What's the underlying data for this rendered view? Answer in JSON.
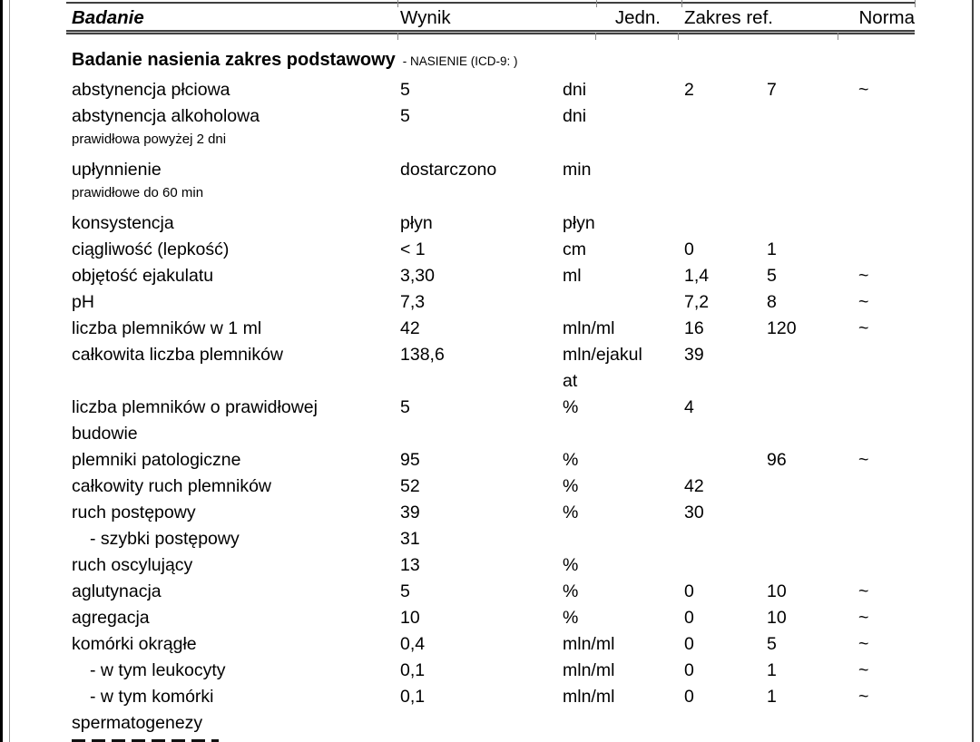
{
  "page": {
    "header": {
      "col_badanie": "Badanie",
      "col_wynik": "Wynik",
      "col_jedn": "Jedn.",
      "col_zakres": "Zakres ref.",
      "col_norma": "Norma"
    },
    "section": {
      "title": "Badanie nasienia zakres podstawowy",
      "suffix": "- NASIENIE (ICD-9: )"
    },
    "table": {
      "rows": [
        {
          "label": [
            "abstynencja płciowa"
          ],
          "result": "5",
          "unit": [
            "dni"
          ],
          "ref_low": "2",
          "ref_high": "7",
          "norma": "~"
        },
        {
          "label": [
            "abstynencja alkoholowa"
          ],
          "result": "5",
          "unit": [
            "dni"
          ],
          "note": "prawidłowa powyżej 2 dni"
        },
        {
          "label": [
            "upłynnienie"
          ],
          "result": "dostarczono",
          "unit": [
            "min"
          ],
          "note": "prawidłowe do 60 min"
        },
        {
          "label": [
            "konsystencja"
          ],
          "result": "płyn",
          "unit": [
            "płyn"
          ]
        },
        {
          "label": [
            "ciągliwość (lepkość)"
          ],
          "result": "< 1",
          "unit": [
            "cm"
          ],
          "ref_low": "0",
          "ref_high": "1"
        },
        {
          "label": [
            "objętość ejakulatu"
          ],
          "result": "3,30",
          "unit": [
            "ml"
          ],
          "ref_low": "1,4",
          "ref_high": "5",
          "norma": "~"
        },
        {
          "label": [
            "pH"
          ],
          "result": "7,3",
          "ref_low": "7,2",
          "ref_high": "8",
          "norma": "~"
        },
        {
          "label": [
            "liczba plemników w 1 ml"
          ],
          "result": "42",
          "unit": [
            "mln/ml"
          ],
          "ref_low": "16",
          "ref_high": "120",
          "norma": "~"
        },
        {
          "label": [
            "całkowita liczba plemników"
          ],
          "result": "138,6",
          "unit": [
            "mln/ejakul",
            "at"
          ],
          "ref_low": "39"
        },
        {
          "label": [
            "liczba plemników o prawidłowej",
            "budowie"
          ],
          "result": "5",
          "unit": [
            "%"
          ],
          "ref_low": "4"
        },
        {
          "label": [
            "plemniki patologiczne"
          ],
          "result": "95",
          "unit": [
            "%"
          ],
          "ref_high": "96",
          "norma": "~"
        },
        {
          "label": [
            "całkowity ruch plemników"
          ],
          "result": "52",
          "unit": [
            "%"
          ],
          "ref_low": "42"
        },
        {
          "label": [
            "ruch postępowy"
          ],
          "result": "39",
          "unit": [
            "%"
          ],
          "ref_low": "30"
        },
        {
          "label": [
            "- szybki postępowy"
          ],
          "indent": true,
          "result": "31"
        },
        {
          "label": [
            "ruch oscylujący"
          ],
          "result": "13",
          "unit": [
            "%"
          ]
        },
        {
          "label": [
            "aglutynacja"
          ],
          "result": "5",
          "unit": [
            "%"
          ],
          "ref_low": "0",
          "ref_high": "10",
          "norma": "~"
        },
        {
          "label": [
            "agregacja"
          ],
          "result": "10",
          "unit": [
            "%"
          ],
          "ref_low": "0",
          "ref_high": "10",
          "norma": "~"
        },
        {
          "label": [
            "komórki okrągłe"
          ],
          "result": "0,4",
          "unit": [
            "mln/ml"
          ],
          "ref_low": "0",
          "ref_high": "5",
          "norma": "~"
        },
        {
          "label": [
            "- w tym leukocyty"
          ],
          "indent": true,
          "result": "0,1",
          "unit": [
            "mln/ml"
          ],
          "ref_low": "0",
          "ref_high": "1",
          "norma": "~"
        },
        {
          "label": [
            "- w tym komórki",
            "spermatogenezy"
          ],
          "indent": true,
          "result": "0,1",
          "unit": [
            "mln/ml"
          ],
          "ref_low": "0",
          "ref_high": "1",
          "norma": "~"
        }
      ]
    },
    "colors": {
      "text": "#000000",
      "rule": "#3f3f3f",
      "tick": "#888888",
      "side_line": "#9a9a9a"
    }
  }
}
